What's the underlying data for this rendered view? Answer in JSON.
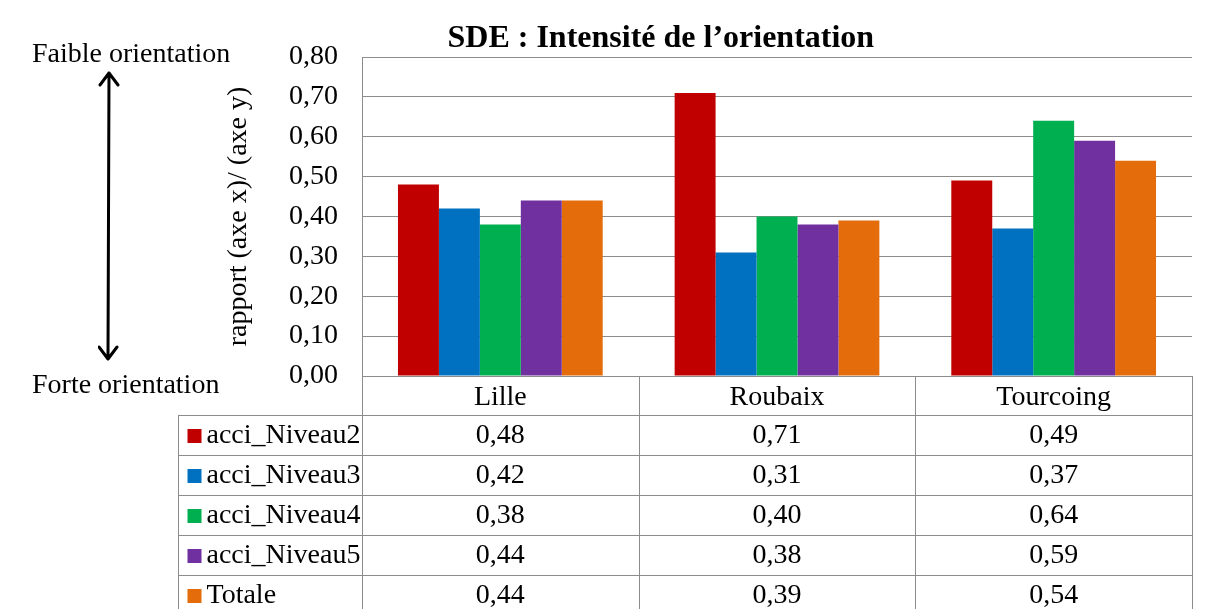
{
  "chart_data": {
    "type": "bar",
    "title": "SDE : Intensité de l’orientation",
    "ylabel": "rapport (axe x)/ (axe y)",
    "annotations": [
      "Faible orientation",
      "Forte orientation"
    ],
    "categories": [
      "Lille",
      "Roubaix",
      "Tourcoing"
    ],
    "series": [
      {
        "name": "acci_Niveau2",
        "color": "#c00000",
        "values": [
          0.48,
          0.71,
          0.49
        ],
        "value_labels": [
          "0,48",
          "0,71",
          "0,49"
        ]
      },
      {
        "name": "acci_Niveau3",
        "color": "#0070c0",
        "values": [
          0.42,
          0.31,
          0.37
        ],
        "value_labels": [
          "0,42",
          "0,31",
          "0,37"
        ]
      },
      {
        "name": "acci_Niveau4",
        "color": "#00b050",
        "values": [
          0.38,
          0.4,
          0.64
        ],
        "value_labels": [
          "0,38",
          "0,40",
          "0,64"
        ]
      },
      {
        "name": "acci_Niveau5",
        "color": "#7030a0",
        "values": [
          0.44,
          0.38,
          0.59
        ],
        "value_labels": [
          "0,44",
          "0,38",
          "0,59"
        ]
      },
      {
        "name": "Totale",
        "color": "#e46c0a",
        "values": [
          0.44,
          0.39,
          0.54
        ],
        "value_labels": [
          "0,44",
          "0,39",
          "0,54"
        ]
      }
    ],
    "ylim": [
      0,
      0.8
    ],
    "yticks": [
      {
        "value": 0,
        "label": "0,00"
      },
      {
        "value": 0.1,
        "label": "0,10"
      },
      {
        "value": 0.2,
        "label": "0,20"
      },
      {
        "value": 0.3,
        "label": "0,30"
      },
      {
        "value": 0.4,
        "label": "0,40"
      },
      {
        "value": 0.5,
        "label": "0,50"
      },
      {
        "value": 0.6,
        "label": "0,60"
      },
      {
        "value": 0.7,
        "label": "0,70"
      },
      {
        "value": 0.8,
        "label": "0,80"
      }
    ],
    "grid": "y",
    "legend": "bottom"
  }
}
